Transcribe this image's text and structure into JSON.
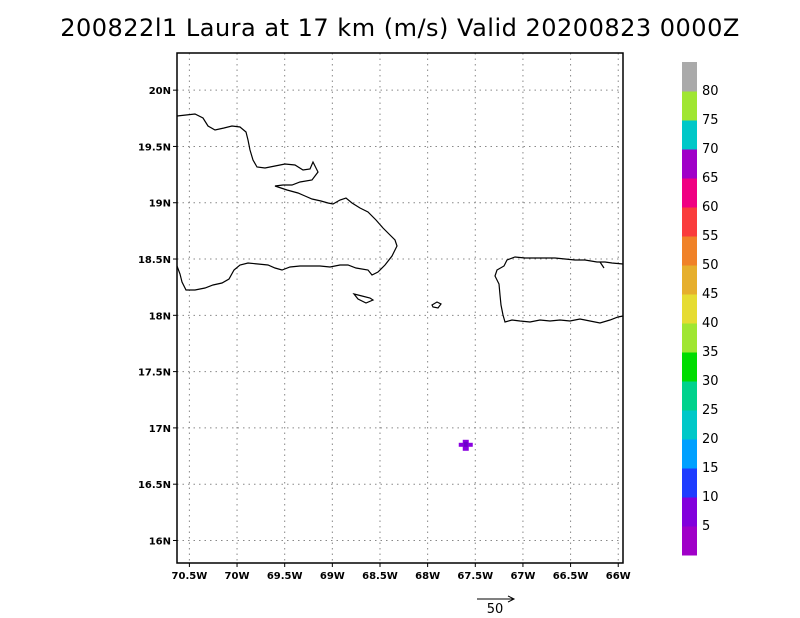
{
  "title": "200822l1 Laura at 17 km (m/s) Valid 20200823 0000Z",
  "map": {
    "lon_range": [
      -70.63,
      -65.95
    ],
    "lat_range": [
      15.8,
      20.33
    ],
    "x_ticks": [
      {
        "lon": -70.5,
        "label": "70.5W"
      },
      {
        "lon": -70.0,
        "label": "70W"
      },
      {
        "lon": -69.5,
        "label": "69.5W"
      },
      {
        "lon": -69.0,
        "label": "69W"
      },
      {
        "lon": -68.5,
        "label": "68.5W"
      },
      {
        "lon": -68.0,
        "label": "68W"
      },
      {
        "lon": -67.5,
        "label": "67.5W"
      },
      {
        "lon": -67.0,
        "label": "67W"
      },
      {
        "lon": -66.5,
        "label": "66.5W"
      },
      {
        "lon": -66.0,
        "label": "66W"
      }
    ],
    "y_ticks": [
      {
        "lat": 20.0,
        "label": "20N"
      },
      {
        "lat": 19.5,
        "label": "19.5N"
      },
      {
        "lat": 19.0,
        "label": "19N"
      },
      {
        "lat": 18.5,
        "label": "18.5N"
      },
      {
        "lat": 18.0,
        "label": "18N"
      },
      {
        "lat": 17.5,
        "label": "17.5N"
      },
      {
        "lat": 17.0,
        "label": "17N"
      },
      {
        "lat": 16.5,
        "label": "16.5N"
      },
      {
        "lat": 16.0,
        "label": "16N"
      }
    ],
    "grid": "dotted",
    "wind_blob": {
      "lon": -67.6,
      "lat": 16.85,
      "color": "#8a00e0"
    }
  },
  "colorbar": {
    "colors": [
      "#a000c8",
      "#8200dc",
      "#1e3cff",
      "#00a0ff",
      "#00c8c8",
      "#00d28c",
      "#00dc00",
      "#a0e632",
      "#e6dc32",
      "#e6af2d",
      "#f08228",
      "#fa3c3c",
      "#f00082",
      "#a000c8",
      "#00c8c8",
      "#a0e632",
      "#aaaaaa"
    ],
    "labels": [
      "5",
      "10",
      "15",
      "20",
      "25",
      "30",
      "35",
      "40",
      "45",
      "50",
      "55",
      "60",
      "65",
      "70",
      "75",
      "80"
    ]
  },
  "vector_reference": {
    "label": "50"
  }
}
